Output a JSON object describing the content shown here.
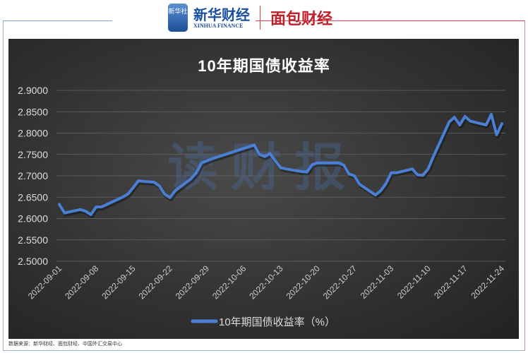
{
  "header": {
    "logo_badge": "新华社",
    "logo_name": "新华财经",
    "logo_en": "XINHUA FINANCE",
    "logo_partner": "面包财经"
  },
  "watermark": "读财报",
  "source": "数据来源：新华财经、面包财经、中国外汇交易中心",
  "chart_data": {
    "type": "line",
    "title": "10年期国债收益率",
    "xlabel": "",
    "ylabel": "",
    "ylim": [
      2.5,
      2.9
    ],
    "yticks": [
      "2.5000",
      "2.5500",
      "2.6000",
      "2.6500",
      "2.7000",
      "2.7500",
      "2.8000",
      "2.8500",
      "2.9000"
    ],
    "xticks": [
      "2022-09-01",
      "2022-09-08",
      "2022-09-15",
      "2022-09-22",
      "2022-09-29",
      "2022-10-06",
      "2022-10-13",
      "2022-10-20",
      "2022-10-27",
      "2022-11-03",
      "2022-11-10",
      "2022-11-17",
      "2022-11-24"
    ],
    "grid": true,
    "legend": "bottom",
    "colors": {
      "line": "#4a7fd4",
      "background": "#333333"
    },
    "series": [
      {
        "name": "10年期国债收益率（%）",
        "x": [
          "2022-09-01",
          "2022-09-02",
          "2022-09-05",
          "2022-09-06",
          "2022-09-07",
          "2022-09-08",
          "2022-09-09",
          "2022-09-13",
          "2022-09-14",
          "2022-09-15",
          "2022-09-16",
          "2022-09-19",
          "2022-09-20",
          "2022-09-21",
          "2022-09-22",
          "2022-09-23",
          "2022-09-26",
          "2022-09-27",
          "2022-09-28",
          "2022-09-29",
          "2022-09-30",
          "2022-10-08",
          "2022-10-09",
          "2022-10-10",
          "2022-10-11",
          "2022-10-12",
          "2022-10-13",
          "2022-10-14",
          "2022-10-17",
          "2022-10-18",
          "2022-10-19",
          "2022-10-20",
          "2022-10-21",
          "2022-10-24",
          "2022-10-25",
          "2022-10-26",
          "2022-10-27",
          "2022-10-28",
          "2022-10-31",
          "2022-11-01",
          "2022-11-02",
          "2022-11-03",
          "2022-11-04",
          "2022-11-07",
          "2022-11-08",
          "2022-11-09",
          "2022-11-10",
          "2022-11-11",
          "2022-11-14",
          "2022-11-15",
          "2022-11-16",
          "2022-11-17",
          "2022-11-18",
          "2022-11-21",
          "2022-11-22",
          "2022-11-23",
          "2022-11-24"
        ],
        "values": [
          2.633,
          2.613,
          2.621,
          2.617,
          2.609,
          2.627,
          2.627,
          2.65,
          2.657,
          2.672,
          2.688,
          2.685,
          2.676,
          2.657,
          2.649,
          2.665,
          2.693,
          2.707,
          2.73,
          2.735,
          2.74,
          2.772,
          2.75,
          2.745,
          2.752,
          2.735,
          2.719,
          2.716,
          2.71,
          2.709,
          2.726,
          2.73,
          2.73,
          2.73,
          2.725,
          2.704,
          2.7,
          2.68,
          2.655,
          2.665,
          2.682,
          2.707,
          2.707,
          2.716,
          2.702,
          2.701,
          2.716,
          2.745,
          2.826,
          2.837,
          2.819,
          2.839,
          2.828,
          2.819,
          2.844,
          2.796,
          2.822
        ]
      }
    ]
  }
}
